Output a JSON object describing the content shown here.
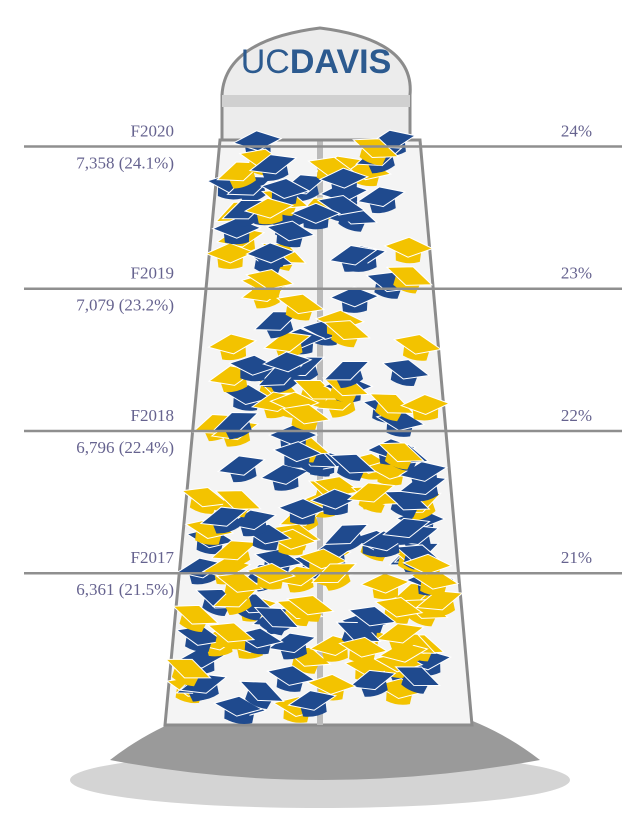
{
  "chart_data": {
    "type": "tower",
    "logo": {
      "light": "UC",
      "bold": "DAVIS"
    },
    "categories": [
      "F2017",
      "F2018",
      "F2019",
      "F2020"
    ],
    "labels": [
      "6,361 (21.5%)",
      "6,796 (22.4%)",
      "7,079 (23.2%)",
      "7,358 (24.1%)"
    ],
    "ylim": [
      19.3,
      25.03
    ],
    "yticks": [
      {
        "value": 21,
        "label": "21%"
      },
      {
        "value": 22,
        "label": "22%"
      },
      {
        "value": 23,
        "label": "23%"
      },
      {
        "value": 24,
        "label": "24%"
      }
    ],
    "colors": [
      "#1f4a8e",
      "#f3c300"
    ]
  }
}
